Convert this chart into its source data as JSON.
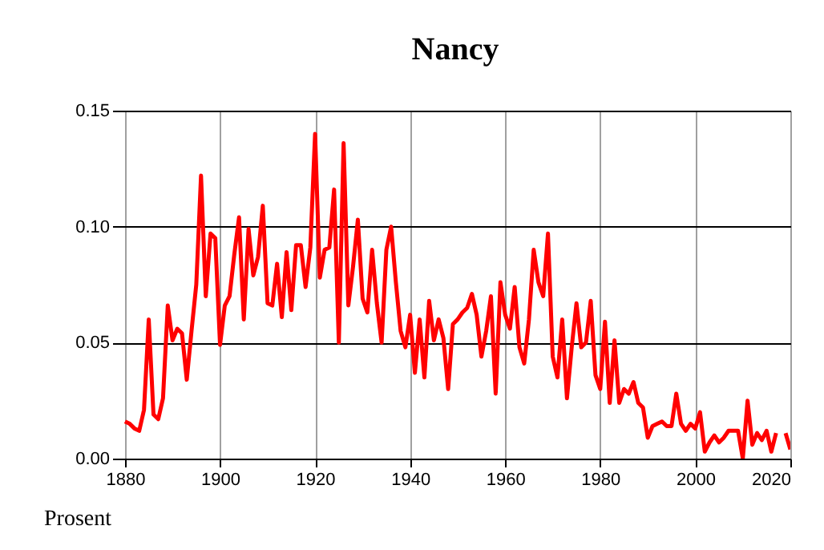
{
  "chart_data": {
    "type": "line",
    "title": "Nancy",
    "ylabel": "Prosent",
    "x": [
      1880,
      1881,
      1882,
      1883,
      1884,
      1885,
      1886,
      1887,
      1888,
      1889,
      1890,
      1891,
      1892,
      1893,
      1894,
      1895,
      1896,
      1897,
      1898,
      1899,
      1900,
      1901,
      1902,
      1903,
      1904,
      1905,
      1906,
      1907,
      1908,
      1909,
      1910,
      1911,
      1912,
      1913,
      1914,
      1915,
      1916,
      1917,
      1918,
      1919,
      1920,
      1921,
      1922,
      1923,
      1924,
      1925,
      1926,
      1927,
      1928,
      1929,
      1930,
      1931,
      1932,
      1933,
      1934,
      1935,
      1936,
      1937,
      1938,
      1939,
      1940,
      1941,
      1942,
      1943,
      1944,
      1945,
      1946,
      1947,
      1948,
      1949,
      1950,
      1951,
      1952,
      1953,
      1954,
      1955,
      1956,
      1957,
      1958,
      1959,
      1960,
      1961,
      1962,
      1963,
      1964,
      1965,
      1966,
      1967,
      1968,
      1969,
      1970,
      1971,
      1972,
      1973,
      1974,
      1975,
      1976,
      1977,
      1978,
      1979,
      1980,
      1981,
      1982,
      1983,
      1984,
      1985,
      1986,
      1987,
      1988,
      1989,
      1990,
      1991,
      1992,
      1993,
      1994,
      1995,
      1996,
      1997,
      1998,
      1999,
      2000,
      2001,
      2002,
      2003,
      2004,
      2005,
      2006,
      2007,
      2008,
      2009,
      2010,
      2011,
      2012,
      2013,
      2014,
      2015,
      2016,
      2017,
      2018,
      2019,
      2020
    ],
    "series": [
      {
        "color": "#ff0000",
        "values": [
          0.016,
          0.015,
          0.013,
          0.012,
          0.021,
          0.06,
          0.019,
          0.017,
          0.026,
          0.066,
          0.051,
          0.056,
          0.054,
          0.034,
          0.055,
          0.075,
          0.122,
          0.07,
          0.097,
          0.095,
          0.049,
          0.066,
          0.07,
          0.088,
          0.104,
          0.06,
          0.099,
          0.079,
          0.087,
          0.109,
          0.067,
          0.066,
          0.084,
          0.061,
          0.089,
          0.064,
          0.092,
          0.092,
          0.074,
          0.091,
          0.14,
          0.078,
          0.09,
          0.091,
          0.116,
          0.05,
          0.136,
          0.066,
          0.083,
          0.103,
          0.069,
          0.063,
          0.09,
          0.067,
          0.05,
          0.09,
          0.1,
          0.076,
          0.055,
          0.048,
          0.062,
          0.037,
          0.06,
          0.035,
          0.068,
          0.051,
          0.06,
          0.052,
          0.03,
          0.058,
          0.06,
          0.063,
          0.065,
          0.071,
          0.062,
          0.044,
          0.055,
          0.07,
          0.028,
          0.076,
          0.062,
          0.056,
          0.074,
          0.048,
          0.041,
          0.06,
          0.09,
          0.076,
          0.07,
          0.097,
          0.044,
          0.035,
          0.06,
          0.026,
          0.048,
          0.067,
          0.048,
          0.05,
          0.068,
          0.036,
          0.03,
          0.059,
          0.024,
          0.051,
          0.024,
          0.03,
          0.028,
          0.033,
          0.024,
          0.022,
          0.009,
          0.014,
          0.015,
          0.016,
          0.014,
          0.014,
          0.028,
          0.015,
          0.012,
          0.015,
          0.013,
          0.02,
          0.003,
          0.007,
          0.01,
          0.007,
          0.009,
          0.012,
          0.012,
          0.012,
          0.0,
          0.025,
          0.006,
          0.011,
          0.008,
          0.012,
          0.003,
          0.011,
          null,
          0.011,
          0.004
        ]
      }
    ],
    "xlim": [
      1879,
      2020
    ],
    "xticks": [
      1880,
      1900,
      1920,
      1940,
      1960,
      1980,
      2000,
      2020
    ],
    "ylim": [
      0,
      0.15
    ],
    "yticks": [
      {
        "value": 0,
        "label": "0.00"
      },
      {
        "value": 0.05,
        "label": "0.05"
      },
      {
        "value": 0.1,
        "label": "0.10"
      },
      {
        "value": 0.15,
        "label": "0.15"
      }
    ],
    "grid": true,
    "line_style": "solid",
    "marker": "none"
  }
}
